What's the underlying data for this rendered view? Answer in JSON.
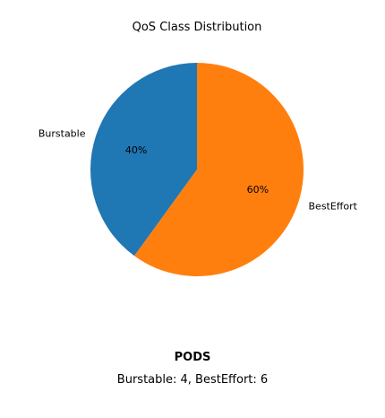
{
  "chart_data": {
    "type": "pie",
    "title": "QoS Class Distribution",
    "slices": [
      {
        "label": "Burstable",
        "value": 4,
        "percent_label": "40%",
        "color": "#1f77b4"
      },
      {
        "label": "BestEffort",
        "value": 6,
        "percent_label": "60%",
        "color": "#ff7f0e"
      }
    ],
    "start_angle_deg": 90,
    "direction": "counterclockwise"
  },
  "summary": {
    "heading": "PODS",
    "text": "Burstable: 4, BestEffort: 6"
  }
}
